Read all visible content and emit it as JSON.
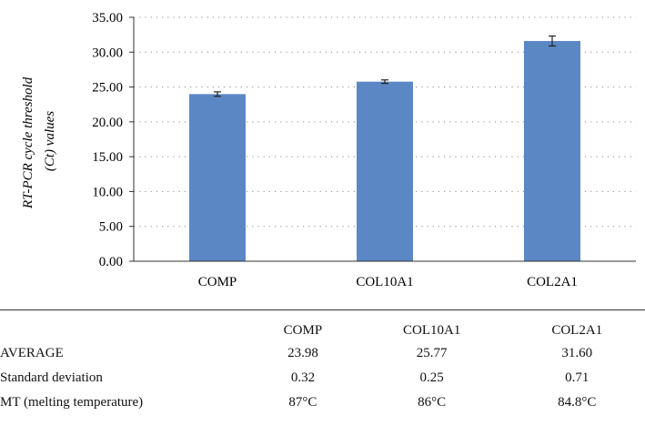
{
  "chart_data": {
    "type": "bar",
    "categories": [
      "COMP",
      "COL10A1",
      "COL2A1"
    ],
    "values": [
      23.98,
      25.77,
      31.6
    ],
    "errors": [
      0.32,
      0.25,
      0.71
    ],
    "ylabel_lines": [
      "RT-PCR cycle threshold",
      "(Ct) values"
    ],
    "ylim": [
      0,
      35
    ],
    "yticks": [
      "0.00",
      "5.00",
      "10.00",
      "15.00",
      "20.00",
      "25.00",
      "30.00",
      "35.00"
    ],
    "grid": true,
    "bar_color": "#5b87c5"
  },
  "table": {
    "columns": [
      "COMP",
      "COL10A1",
      "COL2A1"
    ],
    "rows": [
      {
        "label": "AVERAGE",
        "values": [
          "23.98",
          "25.77",
          "31.60"
        ]
      },
      {
        "label": "Standard deviation",
        "values": [
          "0.32",
          "0.25",
          "0.71"
        ]
      },
      {
        "label": "MT (melting temperature)",
        "values": [
          "87°C",
          "86°C",
          "84.8°C"
        ]
      }
    ]
  }
}
